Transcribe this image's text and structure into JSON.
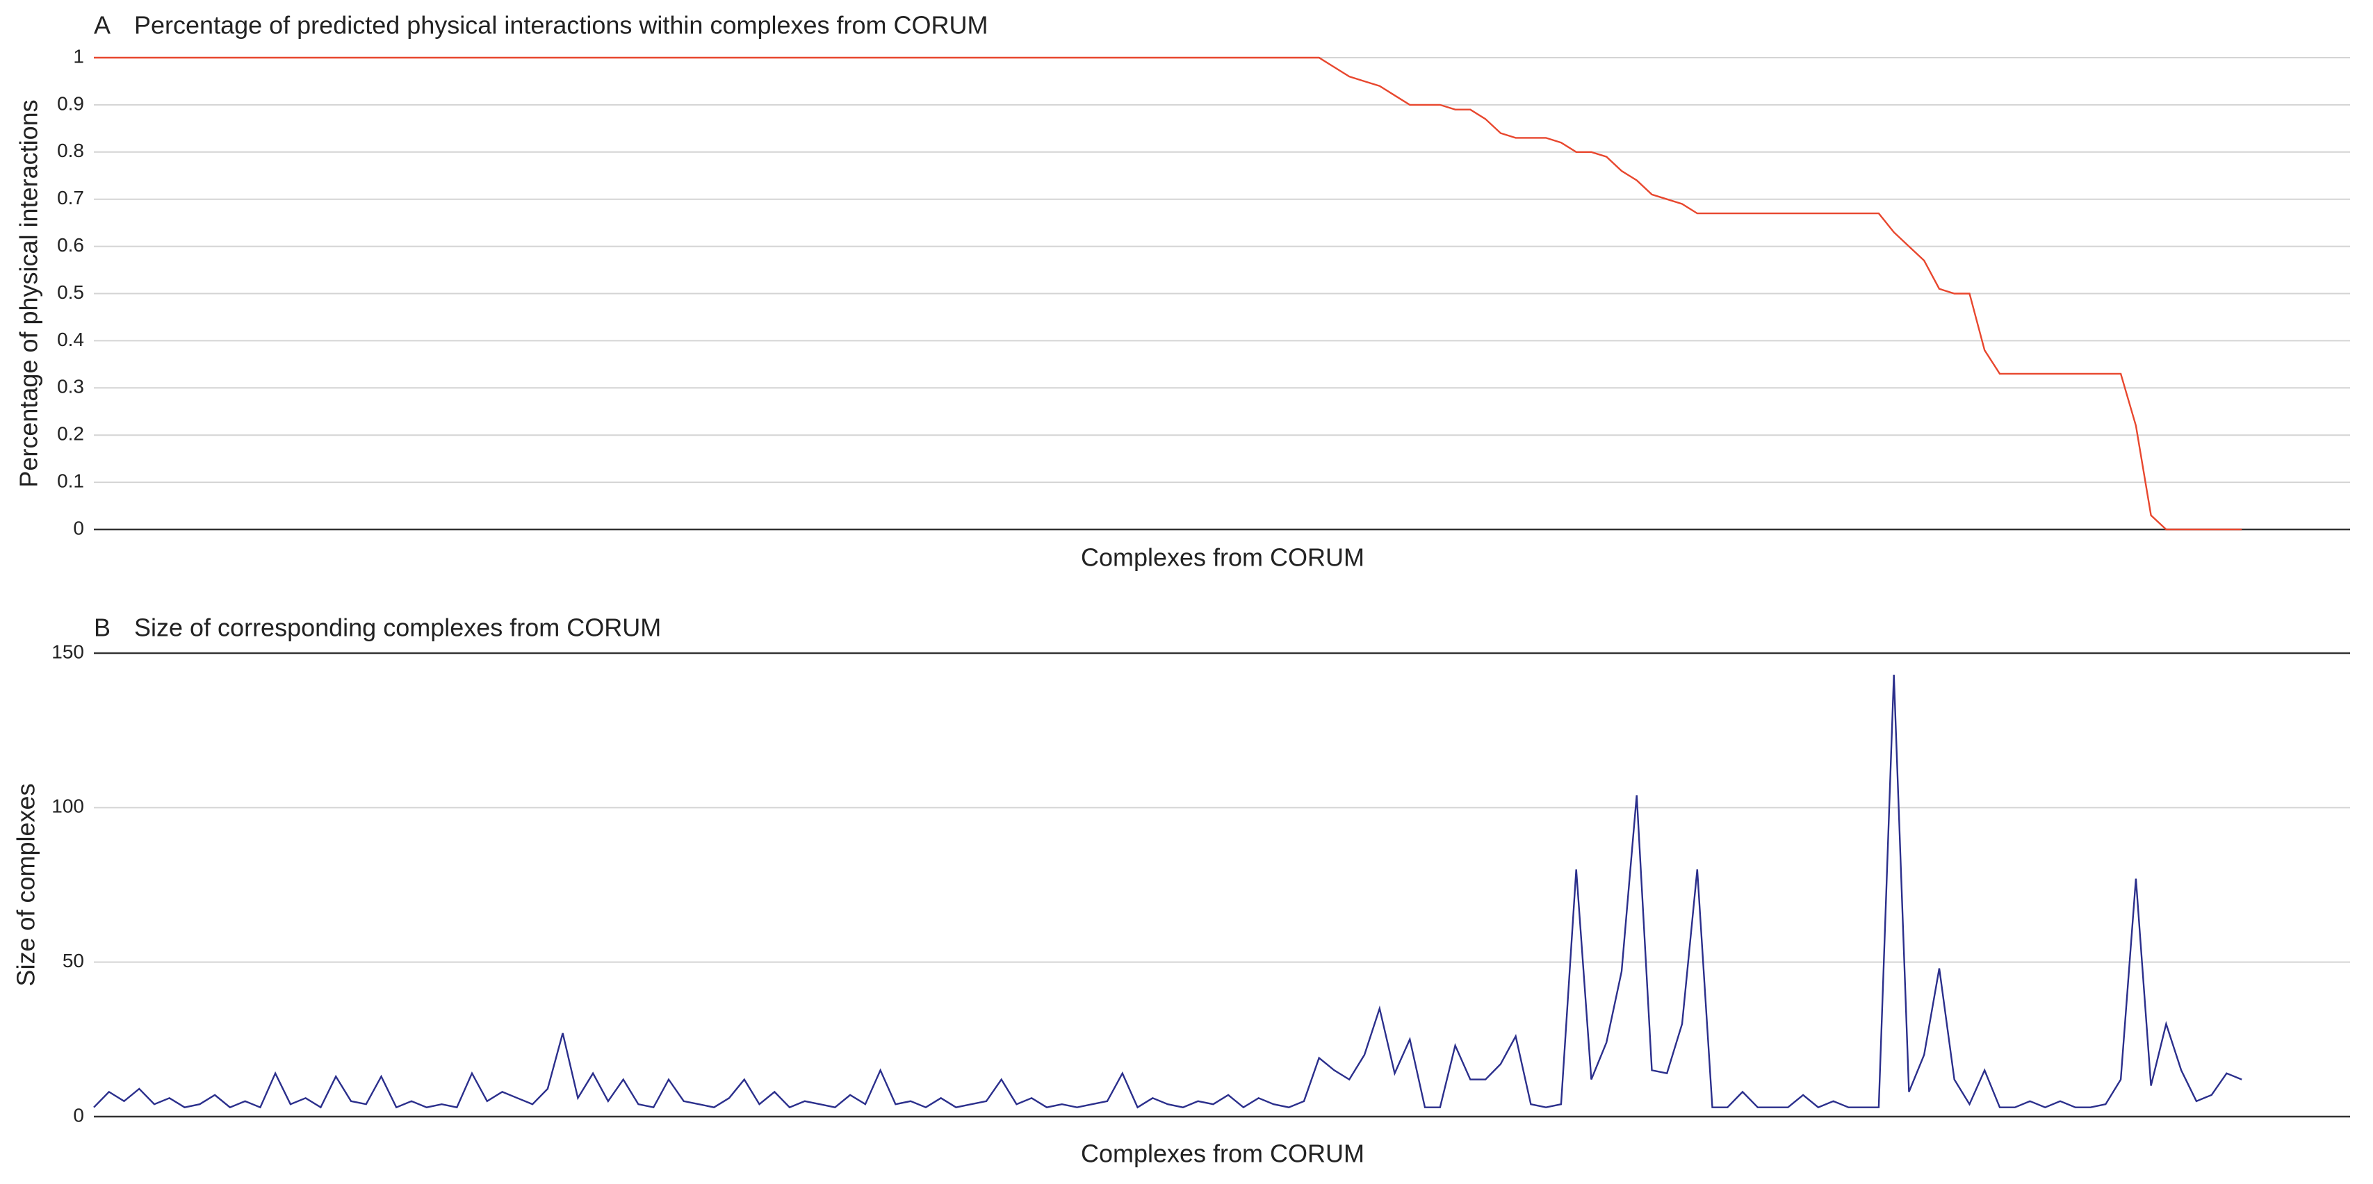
{
  "chart_data": [
    {
      "type": "line",
      "panel_label": "A",
      "title": "Percentage of predicted physical interactions within complexes from CORUM",
      "xlabel": "Complexes from CORUM",
      "ylabel": "Percentage of physical interactions",
      "ylim": [
        0,
        1
      ],
      "yticks": [
        0,
        0.1,
        0.2,
        0.3,
        0.4,
        0.5,
        0.6,
        0.7,
        0.8,
        0.9,
        1
      ],
      "grid": true,
      "color": "#e8472e",
      "values": [
        1,
        1,
        1,
        1,
        1,
        1,
        1,
        1,
        1,
        1,
        1,
        1,
        1,
        1,
        1,
        1,
        1,
        1,
        1,
        1,
        1,
        1,
        1,
        1,
        1,
        1,
        1,
        1,
        1,
        1,
        1,
        1,
        1,
        1,
        1,
        1,
        1,
        1,
        1,
        1,
        1,
        1,
        1,
        1,
        1,
        1,
        1,
        1,
        1,
        1,
        1,
        1,
        1,
        1,
        1,
        1,
        1,
        1,
        1,
        1,
        1,
        1,
        1,
        1,
        1,
        1,
        1,
        1,
        1,
        1,
        1,
        1,
        1,
        1,
        1,
        1,
        1,
        1,
        1,
        1,
        1,
        1,
        0.98,
        0.96,
        0.95,
        0.94,
        0.92,
        0.9,
        0.9,
        0.9,
        0.89,
        0.89,
        0.87,
        0.84,
        0.83,
        0.83,
        0.83,
        0.82,
        0.8,
        0.8,
        0.79,
        0.76,
        0.74,
        0.71,
        0.7,
        0.69,
        0.67,
        0.67,
        0.67,
        0.67,
        0.67,
        0.67,
        0.67,
        0.67,
        0.67,
        0.67,
        0.67,
        0.67,
        0.67,
        0.63,
        0.6,
        0.57,
        0.51,
        0.5,
        0.5,
        0.38,
        0.33,
        0.33,
        0.33,
        0.33,
        0.33,
        0.33,
        0.33,
        0.33,
        0.33,
        0.22,
        0.03,
        0,
        0,
        0,
        0,
        0,
        0
      ]
    },
    {
      "type": "line",
      "panel_label": "B",
      "title": "Size of corresponding complexes from CORUM",
      "xlabel": "Complexes from CORUM",
      "ylabel": "Size of complexes",
      "ylim": [
        0,
        150
      ],
      "yticks": [
        0,
        50,
        100,
        150
      ],
      "grid": true,
      "color": "#2b2f8c",
      "values": [
        3,
        8,
        5,
        9,
        4,
        6,
        3,
        4,
        7,
        3,
        5,
        3,
        14,
        4,
        6,
        3,
        13,
        5,
        4,
        13,
        3,
        5,
        3,
        4,
        3,
        14,
        5,
        8,
        6,
        4,
        9,
        27,
        6,
        14,
        5,
        12,
        4,
        3,
        12,
        5,
        4,
        3,
        6,
        12,
        4,
        8,
        3,
        5,
        4,
        3,
        7,
        4,
        15,
        4,
        5,
        3,
        6,
        3,
        4,
        5,
        12,
        4,
        6,
        3,
        4,
        3,
        4,
        5,
        14,
        3,
        6,
        4,
        3,
        5,
        4,
        7,
        3,
        6,
        4,
        3,
        5,
        19,
        15,
        12,
        20,
        35,
        14,
        25,
        3,
        3,
        23,
        12,
        12,
        17,
        26,
        4,
        3,
        4,
        80,
        12,
        24,
        47,
        104,
        15,
        14,
        30,
        80,
        3,
        3,
        8,
        3,
        3,
        3,
        7,
        3,
        5,
        3,
        3,
        3,
        143,
        8,
        20,
        48,
        12,
        4,
        15,
        3,
        3,
        5,
        3,
        5,
        3,
        3,
        4,
        12,
        77,
        10,
        30,
        15,
        5,
        7,
        14,
        12
      ]
    }
  ]
}
